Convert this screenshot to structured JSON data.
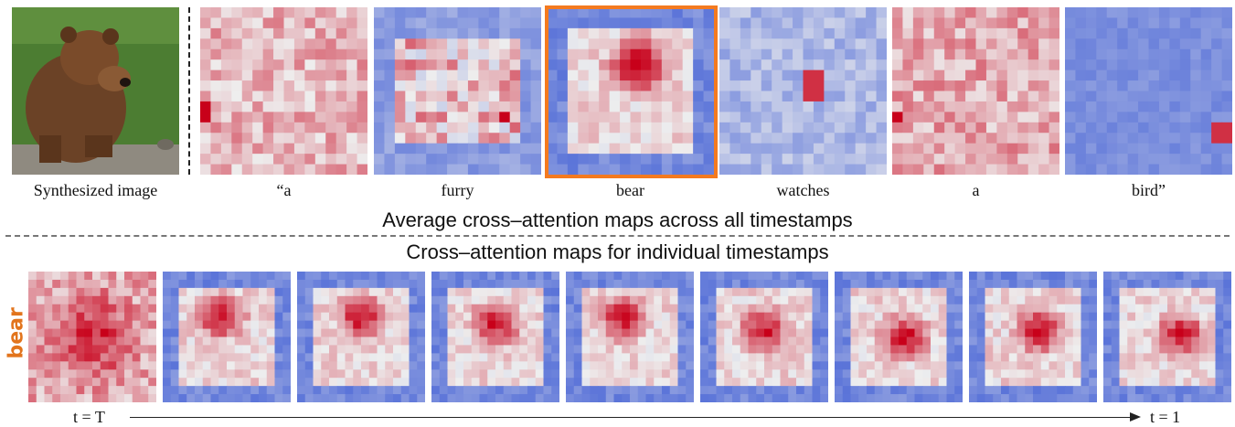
{
  "top_row": {
    "synth_label": "Synthesized image",
    "tokens": [
      "“a",
      "furry",
      "bear",
      "watches",
      "a",
      "bird”"
    ],
    "highlighted_token": "bear",
    "highlight_color": "#f47a1f"
  },
  "headings": {
    "average": "Average cross–attention maps across all timestamps",
    "individual": "Cross–attention maps for individual  timestamps"
  },
  "bottom_row": {
    "label": "bear",
    "start_label": "t = T",
    "end_label": "t = 1",
    "map_count": 9
  },
  "colors": {
    "cold": "#4a66d6",
    "neutral": "#eeeeee",
    "hot": "#c8001a",
    "row_label": "#e2741c"
  }
}
